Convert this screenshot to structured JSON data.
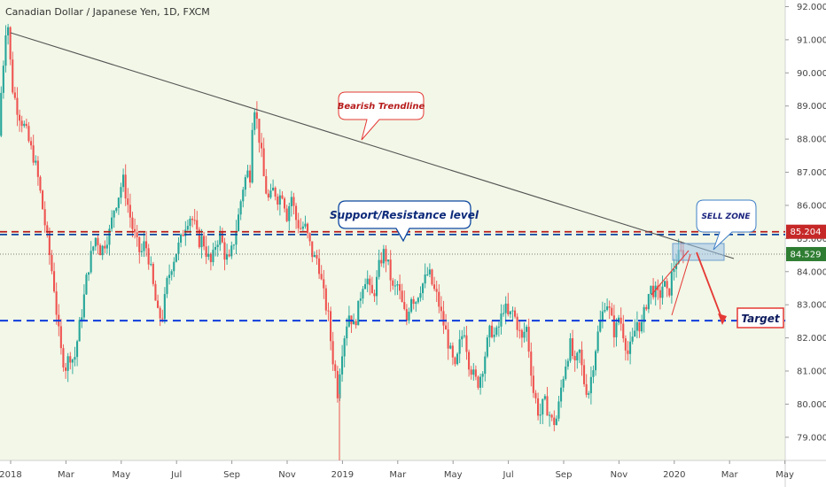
{
  "chart_data": {
    "type": "candlestick",
    "title": "Canadian Dollar / Japanese Yen, 1D, FXCM",
    "x_labels": [
      "2018",
      "Mar",
      "May",
      "Jul",
      "Sep",
      "Nov",
      "2019",
      "Mar",
      "May",
      "Jul",
      "Sep",
      "Nov",
      "2020",
      "Mar",
      "May"
    ],
    "y_ticks": [
      "79.000",
      "80.000",
      "81.000",
      "82.000",
      "83.000",
      "84.000",
      "85.000",
      "86.000",
      "87.000",
      "88.000",
      "89.000",
      "90.000",
      "91.000",
      "92.000"
    ],
    "ylim": [
      78.3,
      92.2
    ],
    "colors": {
      "up": "#26a69a",
      "down": "#ef5350",
      "background": "#f2f7e7"
    },
    "price_path": [
      [
        0,
        88.1
      ],
      [
        3,
        89.6
      ],
      [
        6,
        90.6
      ],
      [
        8,
        91.4
      ],
      [
        10,
        91.6
      ],
      [
        12,
        90.7
      ],
      [
        15,
        89.6
      ],
      [
        20,
        89.0
      ],
      [
        25,
        88.6
      ],
      [
        30,
        88.3
      ],
      [
        35,
        87.8
      ],
      [
        40,
        87.4
      ],
      [
        45,
        86.7
      ],
      [
        50,
        85.8
      ],
      [
        55,
        84.9
      ],
      [
        60,
        84.0
      ],
      [
        63,
        83.4
      ],
      [
        66,
        82.5
      ],
      [
        70,
        81.6
      ],
      [
        75,
        81.1
      ],
      [
        80,
        81.5
      ],
      [
        85,
        81.3
      ],
      [
        90,
        82.2
      ],
      [
        95,
        83.0
      ],
      [
        100,
        84.0
      ],
      [
        105,
        84.6
      ],
      [
        110,
        85.1
      ],
      [
        115,
        84.6
      ],
      [
        120,
        84.9
      ],
      [
        125,
        85.2
      ],
      [
        130,
        85.9
      ],
      [
        135,
        86.3
      ],
      [
        140,
        86.8
      ],
      [
        145,
        86.1
      ],
      [
        150,
        85.4
      ],
      [
        155,
        84.9
      ],
      [
        160,
        84.5
      ],
      [
        165,
        84.9
      ],
      [
        170,
        84.3
      ],
      [
        175,
        83.4
      ],
      [
        180,
        82.6
      ],
      [
        185,
        82.7
      ],
      [
        190,
        83.7
      ],
      [
        195,
        84.2
      ],
      [
        200,
        84.6
      ],
      [
        205,
        84.9
      ],
      [
        210,
        85.4
      ],
      [
        215,
        85.7
      ],
      [
        220,
        85.5
      ],
      [
        225,
        84.9
      ],
      [
        230,
        85.0
      ],
      [
        235,
        84.5
      ],
      [
        240,
        84.2
      ],
      [
        245,
        84.9
      ],
      [
        250,
        85.1
      ],
      [
        255,
        84.5
      ],
      [
        260,
        84.3
      ],
      [
        265,
        84.9
      ],
      [
        270,
        85.6
      ],
      [
        275,
        86.5
      ],
      [
        280,
        87.0
      ],
      [
        284,
        86.9
      ],
      [
        286,
        88.5
      ],
      [
        288,
        89.1
      ],
      [
        292,
        88.4
      ],
      [
        296,
        87.6
      ],
      [
        300,
        86.6
      ],
      [
        305,
        86.1
      ],
      [
        310,
        86.5
      ],
      [
        315,
        86.2
      ],
      [
        320,
        86.4
      ],
      [
        325,
        85.7
      ],
      [
        330,
        86.3
      ],
      [
        335,
        85.6
      ],
      [
        340,
        85.3
      ],
      [
        345,
        85.4
      ],
      [
        350,
        84.9
      ],
      [
        355,
        84.4
      ],
      [
        360,
        84.4
      ],
      [
        365,
        83.5
      ],
      [
        368,
        83.1
      ],
      [
        372,
        82.6
      ],
      [
        376,
        81.5
      ],
      [
        380,
        80.9
      ],
      [
        382,
        80.3
      ],
      [
        384,
        80.9
      ],
      [
        388,
        81.8
      ],
      [
        392,
        82.4
      ],
      [
        396,
        82.8
      ],
      [
        400,
        82.3
      ],
      [
        405,
        82.8
      ],
      [
        410,
        83.6
      ],
      [
        415,
        83.9
      ],
      [
        420,
        83.2
      ],
      [
        425,
        83.5
      ],
      [
        430,
        84.3
      ],
      [
        435,
        84.6
      ],
      [
        440,
        84.1
      ],
      [
        445,
        83.4
      ],
      [
        450,
        83.6
      ],
      [
        455,
        83.0
      ],
      [
        460,
        82.5
      ],
      [
        465,
        83.3
      ],
      [
        470,
        83.1
      ],
      [
        475,
        83.5
      ],
      [
        480,
        83.7
      ],
      [
        485,
        84.0
      ],
      [
        490,
        83.5
      ],
      [
        495,
        83.2
      ],
      [
        500,
        82.6
      ],
      [
        505,
        82.1
      ],
      [
        510,
        81.5
      ],
      [
        515,
        81.0
      ],
      [
        520,
        81.8
      ],
      [
        525,
        82.3
      ],
      [
        530,
        81.3
      ],
      [
        535,
        80.9
      ],
      [
        540,
        80.6
      ],
      [
        545,
        81.0
      ],
      [
        550,
        81.7
      ],
      [
        555,
        82.3
      ],
      [
        560,
        82.0
      ],
      [
        565,
        82.4
      ],
      [
        570,
        83.0
      ],
      [
        575,
        82.6
      ],
      [
        580,
        82.8
      ],
      [
        585,
        82.4
      ],
      [
        590,
        81.9
      ],
      [
        595,
        82.4
      ],
      [
        600,
        81.2
      ],
      [
        603,
        80.4
      ],
      [
        606,
        80.1
      ],
      [
        610,
        79.6
      ],
      [
        615,
        80.1
      ],
      [
        620,
        79.8
      ],
      [
        625,
        79.4
      ],
      [
        630,
        79.6
      ],
      [
        635,
        80.6
      ],
      [
        640,
        81.3
      ],
      [
        645,
        81.8
      ],
      [
        650,
        81.1
      ],
      [
        655,
        81.6
      ],
      [
        660,
        80.7
      ],
      [
        665,
        80.3
      ],
      [
        670,
        81.1
      ],
      [
        675,
        82.0
      ],
      [
        680,
        82.6
      ],
      [
        685,
        83.2
      ],
      [
        690,
        82.7
      ],
      [
        695,
        82.1
      ],
      [
        700,
        82.7
      ],
      [
        705,
        82.1
      ],
      [
        710,
        81.5
      ],
      [
        715,
        81.9
      ],
      [
        720,
        82.5
      ],
      [
        725,
        82.3
      ],
      [
        730,
        83.0
      ],
      [
        735,
        83.5
      ],
      [
        740,
        83.4
      ],
      [
        745,
        83.2
      ],
      [
        750,
        83.7
      ],
      [
        755,
        83.2
      ],
      [
        760,
        84.0
      ],
      [
        765,
        84.4
      ],
      [
        768,
        84.5
      ],
      [
        772,
        84.6
      ]
    ],
    "lines": [
      {
        "name": "resistance-line",
        "y": 85.204,
        "color": "#b71c1c",
        "style": "dashed"
      },
      {
        "name": "support-line-blue",
        "y": 85.12,
        "color": "#0d47a1",
        "style": "dashed"
      },
      {
        "name": "target-line",
        "y": 82.52,
        "color": "#0d3cdc",
        "style": "dashed"
      },
      {
        "name": "current-price-line",
        "y": 84.529,
        "color": "#555555",
        "style": "dotted"
      }
    ],
    "price_badges": [
      {
        "label": "85.204",
        "y": 85.204,
        "color": "#c62828"
      },
      {
        "label": "84.529",
        "y": 84.529,
        "color": "#2e7d32"
      }
    ],
    "annotations": {
      "trendline_label": "Bearish Trendline",
      "support_label": "Support/Resistance level",
      "sell_zone_label": "SELL ZONE",
      "target_label": "Target"
    }
  }
}
